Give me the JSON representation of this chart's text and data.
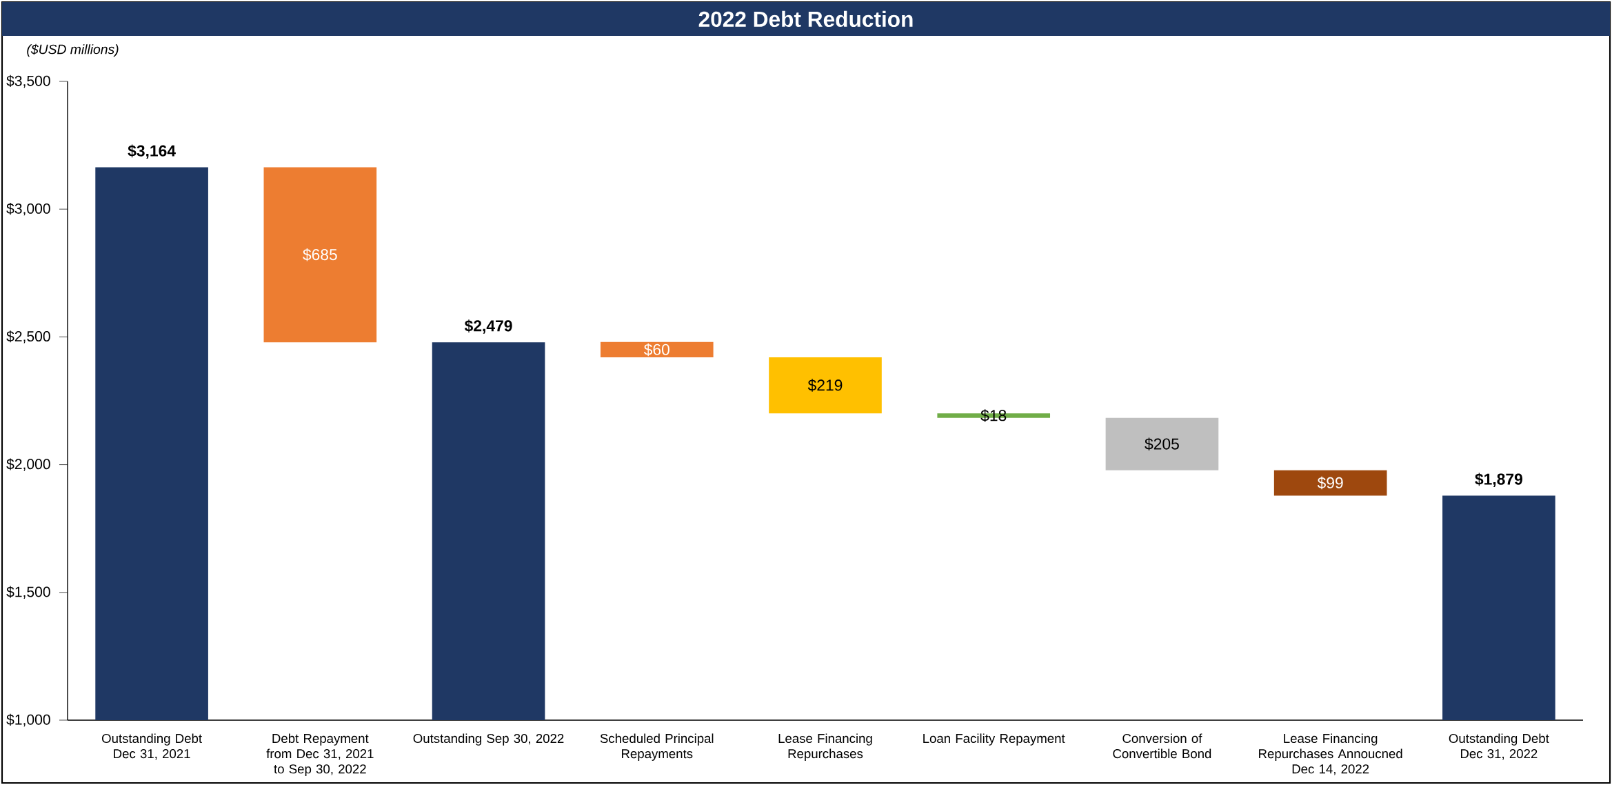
{
  "chart_data": {
    "type": "bar",
    "title": "2022 Debt Reduction",
    "ylabel": "($USD millions)",
    "categories": [
      "Outstanding Debt Dec 31, 2021",
      "Debt Repayment from Dec 31, 2021 to Sep 30, 2022",
      "Outstanding Sep 30, 2022",
      "Scheduled  Principal Repayments",
      "Lease Financing Repurchases",
      "Loan Facility Repayment",
      "Conversion of Convertible Bond",
      "Lease Financing Repurchases Annoucned Dec 14, 2022",
      "Outstanding Debt Dec 31, 2022"
    ],
    "values": [
      3164,
      685,
      2479,
      60,
      219,
      18,
      205,
      99,
      1879
    ],
    "base": [
      null,
      2479,
      null,
      2420,
      2201,
      2183,
      1978,
      1879,
      null
    ],
    "colors": [
      "#1f3864",
      "#ed7d31",
      "#1f3864",
      "#ed7d31",
      "#ffc000",
      "#70ad47",
      "#bfbfbf",
      "#9e480e",
      "#1f3864"
    ],
    "value_labels": [
      "$3,164",
      "$685",
      "$2,479",
      "$60",
      "$219",
      "$18",
      "$205",
      "$99",
      "$1,879"
    ],
    "ylim": [
      1000,
      3500
    ],
    "yticks": [
      {
        "value": 1000,
        "label": "$1,000"
      },
      {
        "value": 1500,
        "label": "$1,500"
      },
      {
        "value": 2000,
        "label": "$2,000"
      },
      {
        "value": 2500,
        "label": "$2,500"
      },
      {
        "value": 3000,
        "label": "$3,000"
      },
      {
        "value": 3500,
        "label": "$3,500"
      }
    ],
    "grid": false
  }
}
